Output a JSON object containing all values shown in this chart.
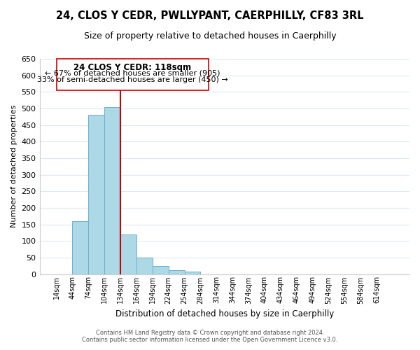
{
  "title": "24, CLOS Y CEDR, PWLLYPANT, CAERPHILLY, CF83 3RL",
  "subtitle": "Size of property relative to detached houses in Caerphilly",
  "xlabel": "Distribution of detached houses by size in Caerphilly",
  "ylabel": "Number of detached properties",
  "bin_labels": [
    "14sqm",
    "44sqm",
    "74sqm",
    "104sqm",
    "134sqm",
    "164sqm",
    "194sqm",
    "224sqm",
    "254sqm",
    "284sqm",
    "314sqm",
    "344sqm",
    "374sqm",
    "404sqm",
    "434sqm",
    "464sqm",
    "494sqm",
    "524sqm",
    "554sqm",
    "584sqm",
    "614sqm"
  ],
  "bar_values": [
    0,
    160,
    480,
    505,
    120,
    50,
    25,
    12,
    8,
    0,
    0,
    0,
    0,
    0,
    0,
    0,
    0,
    0,
    0,
    0,
    0
  ],
  "bar_color": "#add8e6",
  "bar_edge_color": "#6baed6",
  "ylim": [
    0,
    650
  ],
  "yticks": [
    0,
    50,
    100,
    150,
    200,
    250,
    300,
    350,
    400,
    450,
    500,
    550,
    600,
    650
  ],
  "vline_x": 4,
  "vline_color": "#cc0000",
  "annotation_title": "24 CLOS Y CEDR: 118sqm",
  "annotation_line1": "← 67% of detached houses are smaller (905)",
  "annotation_line2": "33% of semi-detached houses are larger (450) →",
  "annotation_box_color": "#ffffff",
  "annotation_box_edge": "#cc0000",
  "footer_line1": "Contains HM Land Registry data © Crown copyright and database right 2024.",
  "footer_line2": "Contains public sector information licensed under the Open Government Licence v3.0.",
  "background_color": "#ffffff",
  "grid_color": "#dce9f5"
}
